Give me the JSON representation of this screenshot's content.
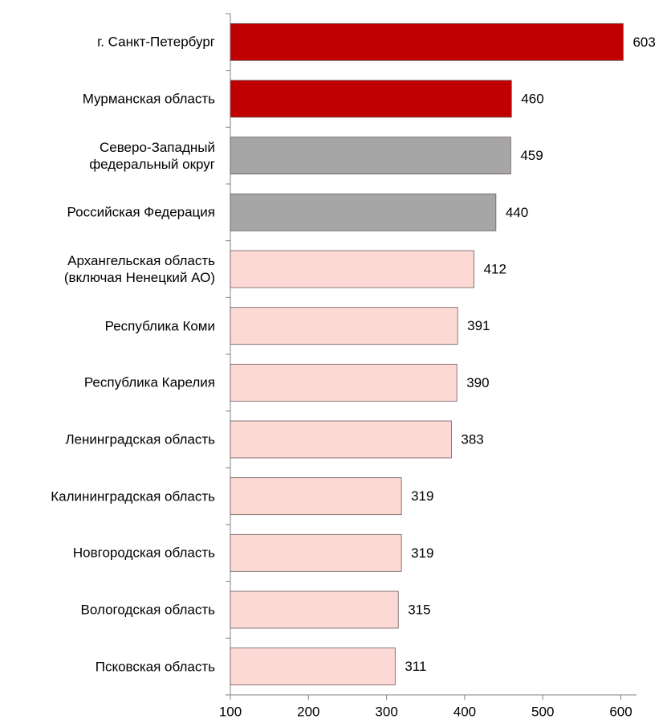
{
  "chart_data": {
    "type": "barh",
    "categories": [
      "г. Санкт-Петербург",
      "Мурманская область",
      "Северо-Западный\nфедеральный округ",
      "Российская Федерация",
      "Архангельская область\n(включая Ненецкий АО)",
      "Республика Коми",
      "Республика Карелия",
      "Ленинградская область",
      "Калининградская область",
      "Новгородская область",
      "Вологодская область",
      "Псковская область"
    ],
    "values": [
      603,
      460,
      459,
      440,
      412,
      391,
      390,
      383,
      319,
      319,
      315,
      311
    ],
    "colors": [
      "#c00000",
      "#c00000",
      "#a6a6a6",
      "#a6a6a6",
      "#fcd9d5",
      "#fcd9d5",
      "#fcd9d5",
      "#fcd9d5",
      "#fcd9d5",
      "#fcd9d5",
      "#fcd9d5",
      "#fcd9d5"
    ],
    "xlim": [
      100,
      620
    ],
    "xticks": [
      100,
      200,
      300,
      400,
      500,
      600
    ]
  }
}
